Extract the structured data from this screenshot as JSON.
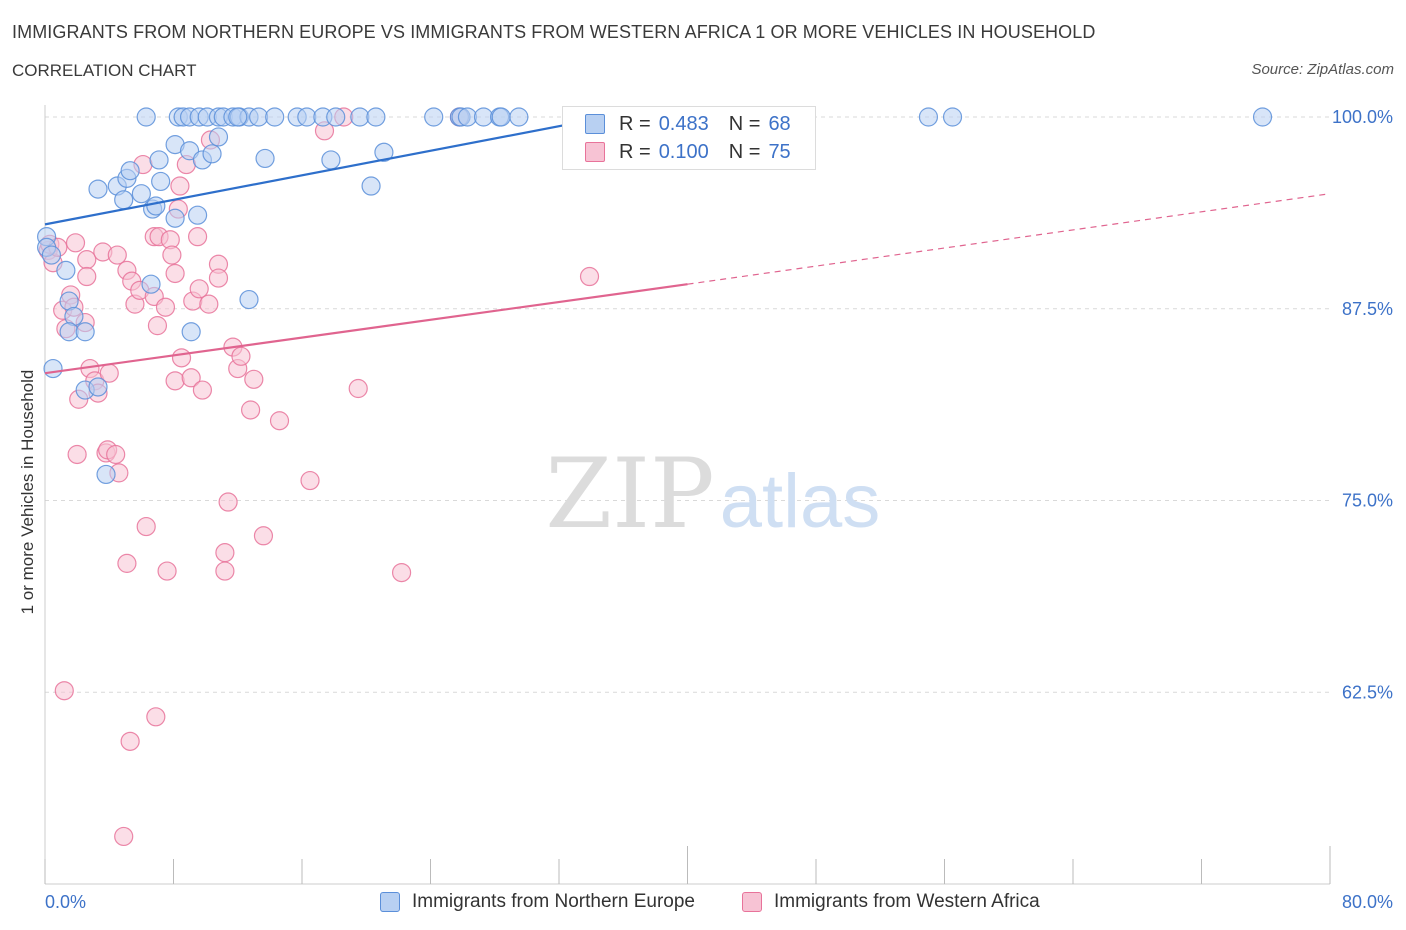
{
  "title": "IMMIGRANTS FROM NORTHERN EUROPE VS IMMIGRANTS FROM WESTERN AFRICA 1 OR MORE VEHICLES IN HOUSEHOLD",
  "subtitle": "CORRELATION CHART",
  "source": "Source: ZipAtlas.com",
  "watermark": {
    "zip": "ZIP",
    "atlas": "atlas"
  },
  "colors": {
    "blue": "#5b8fd9",
    "blue_fill": "#b8d0f2",
    "blue_line": "#2e6fcb",
    "pink": "#e8739a",
    "pink_fill": "#f7c3d4",
    "pink_line": "#e0648f",
    "tick_label": "#3d72c8",
    "grid": "#d9d9d9"
  },
  "legend": {
    "series": [
      {
        "r_label": "R =",
        "r_value": "0.483",
        "n_label": "N =",
        "n_value": "68"
      },
      {
        "r_label": "R =",
        "r_value": "0.100",
        "n_label": "N =",
        "n_value": "75"
      }
    ]
  },
  "chart_data": {
    "type": "scatter",
    "title": "IMMIGRANTS FROM NORTHERN EUROPE VS IMMIGRANTS FROM WESTERN AFRICA 1 OR MORE VEHICLES IN HOUSEHOLD",
    "xlabel": "",
    "ylabel": "1 or more Vehicles in Household",
    "xlim": [
      0,
      80
    ],
    "ylim": [
      50,
      100
    ],
    "x_tick_labels": [
      "0.0%",
      "80.0%"
    ],
    "y_ticks": [
      62.5,
      75.0,
      87.5,
      100.0
    ],
    "y_tick_labels": [
      "62.5%",
      "75.0%",
      "87.5%",
      "100.0%"
    ],
    "grid": true,
    "series": [
      {
        "name": "Immigrants from Northern Europe",
        "color": "#5b8fd9",
        "trend": {
          "x": [
            0,
            35
          ],
          "y": [
            93.0,
            100.0
          ],
          "extended": false
        },
        "points": [
          [
            0.1,
            92.2
          ],
          [
            0.1,
            91.5
          ],
          [
            0.4,
            91.0
          ],
          [
            0.5,
            83.6
          ],
          [
            1.3,
            90.0
          ],
          [
            1.5,
            88.0
          ],
          [
            1.8,
            87.0
          ],
          [
            1.5,
            86.0
          ],
          [
            2.5,
            86.0
          ],
          [
            2.5,
            82.2
          ],
          [
            3.3,
            82.4
          ],
          [
            3.8,
            76.7
          ],
          [
            3.3,
            95.3
          ],
          [
            4.5,
            95.5
          ],
          [
            5.1,
            96.0
          ],
          [
            5.3,
            96.5
          ],
          [
            4.9,
            94.6
          ],
          [
            6.0,
            95.0
          ],
          [
            6.7,
            94.0
          ],
          [
            6.9,
            94.2
          ],
          [
            7.1,
            97.2
          ],
          [
            7.2,
            95.8
          ],
          [
            8.1,
            93.4
          ],
          [
            8.1,
            98.2
          ],
          [
            9.0,
            97.8
          ],
          [
            9.1,
            86.0
          ],
          [
            9.8,
            97.2
          ],
          [
            9.5,
            93.6
          ],
          [
            10.4,
            97.6
          ],
          [
            10.8,
            98.7
          ],
          [
            12.7,
            88.1
          ],
          [
            13.7,
            97.3
          ],
          [
            17.8,
            97.2
          ],
          [
            20.3,
            95.5
          ],
          [
            21.1,
            97.7
          ],
          [
            6.6,
            89.1
          ],
          [
            6.3,
            100.0
          ],
          [
            8.3,
            100.0
          ],
          [
            8.6,
            100.0
          ],
          [
            9.0,
            100.0
          ],
          [
            9.6,
            100.0
          ],
          [
            10.1,
            100.0
          ],
          [
            10.8,
            100.0
          ],
          [
            11.1,
            100.0
          ],
          [
            11.7,
            100.0
          ],
          [
            12.1,
            100.0
          ],
          [
            12.7,
            100.0
          ],
          [
            13.3,
            100.0
          ],
          [
            14.3,
            100.0
          ],
          [
            15.7,
            100.0
          ],
          [
            16.3,
            100.0
          ],
          [
            17.3,
            100.0
          ],
          [
            18.1,
            100.0
          ],
          [
            19.6,
            100.0
          ],
          [
            20.6,
            100.0
          ],
          [
            25.8,
            100.0
          ],
          [
            25.9,
            100.0
          ],
          [
            26.3,
            100.0
          ],
          [
            27.3,
            100.0
          ],
          [
            28.3,
            100.0
          ],
          [
            28.4,
            100.0
          ],
          [
            33.8,
            100.0
          ],
          [
            55.0,
            100.0
          ],
          [
            56.5,
            100.0
          ],
          [
            75.8,
            100.0
          ],
          [
            29.5,
            100.0
          ],
          [
            12.0,
            100.0
          ],
          [
            24.2,
            100.0
          ]
        ]
      },
      {
        "name": "Immigrants from Western Africa",
        "color": "#e8739a",
        "trend": {
          "x": [
            0,
            40
          ],
          "y": [
            83.3,
            89.1
          ],
          "extended": true,
          "x_ext": [
            40,
            80
          ],
          "y_ext": [
            89.1,
            95.0
          ]
        },
        "points": [
          [
            0.2,
            91.3
          ],
          [
            0.3,
            91.7
          ],
          [
            0.5,
            90.5
          ],
          [
            0.8,
            91.5
          ],
          [
            1.1,
            87.4
          ],
          [
            1.3,
            86.2
          ],
          [
            1.6,
            88.4
          ],
          [
            1.8,
            87.6
          ],
          [
            1.9,
            91.8
          ],
          [
            2.0,
            78.0
          ],
          [
            2.1,
            81.6
          ],
          [
            2.6,
            90.7
          ],
          [
            2.5,
            86.6
          ],
          [
            2.6,
            89.6
          ],
          [
            2.8,
            83.6
          ],
          [
            3.1,
            82.8
          ],
          [
            3.3,
            82.0
          ],
          [
            3.6,
            91.2
          ],
          [
            3.8,
            78.1
          ],
          [
            3.9,
            78.3
          ],
          [
            4.0,
            83.3
          ],
          [
            4.5,
            91.0
          ],
          [
            4.4,
            78.0
          ],
          [
            4.6,
            76.8
          ],
          [
            5.1,
            90.0
          ],
          [
            5.4,
            89.3
          ],
          [
            5.6,
            87.8
          ],
          [
            5.9,
            88.7
          ],
          [
            6.1,
            96.9
          ],
          [
            6.3,
            73.3
          ],
          [
            6.8,
            88.3
          ],
          [
            6.8,
            92.2
          ],
          [
            7.0,
            86.4
          ],
          [
            7.1,
            92.2
          ],
          [
            7.5,
            87.6
          ],
          [
            7.6,
            70.4
          ],
          [
            7.8,
            92.0
          ],
          [
            7.9,
            91.0
          ],
          [
            8.1,
            89.8
          ],
          [
            8.1,
            82.8
          ],
          [
            8.3,
            94.0
          ],
          [
            8.4,
            95.5
          ],
          [
            8.5,
            84.3
          ],
          [
            8.8,
            96.9
          ],
          [
            9.1,
            83.0
          ],
          [
            9.2,
            88.0
          ],
          [
            9.5,
            92.2
          ],
          [
            9.6,
            88.8
          ],
          [
            9.8,
            82.2
          ],
          [
            10.2,
            87.8
          ],
          [
            10.3,
            98.5
          ],
          [
            10.8,
            90.4
          ],
          [
            10.8,
            89.5
          ],
          [
            11.2,
            70.4
          ],
          [
            11.2,
            71.6
          ],
          [
            11.4,
            74.9
          ],
          [
            11.7,
            85.0
          ],
          [
            12.0,
            83.6
          ],
          [
            12.2,
            84.4
          ],
          [
            12.8,
            80.9
          ],
          [
            13.0,
            82.9
          ],
          [
            13.6,
            72.7
          ],
          [
            14.6,
            80.2
          ],
          [
            16.5,
            76.3
          ],
          [
            17.4,
            99.1
          ],
          [
            18.6,
            100.0
          ],
          [
            19.5,
            82.3
          ],
          [
            22.2,
            70.3
          ],
          [
            33.9,
            89.6
          ],
          [
            1.2,
            62.6
          ],
          [
            5.1,
            70.9
          ],
          [
            6.9,
            60.9
          ],
          [
            5.3,
            59.3
          ],
          [
            4.9,
            53.1
          ],
          [
            25.8,
            100.0
          ]
        ]
      }
    ]
  }
}
